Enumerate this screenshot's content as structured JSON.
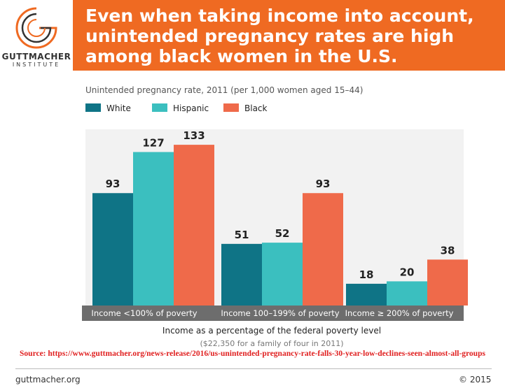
{
  "header": {
    "logo_name": "GUTTMACHER",
    "logo_sub": "INSTITUTE",
    "headline": "Even when taking income into account, unintended pregnancy rates are high among black women in the U.S."
  },
  "colors": {
    "header_bg": "#ef6a22",
    "white": "#0f7486",
    "hispanic": "#3bbfbf",
    "black": "#ef6a4a",
    "category_band": "#6d6d6d",
    "source": "#e02020"
  },
  "chart_data": {
    "type": "bar",
    "title": "Unintended pregnancy rate, 2011 (per 1,000 women aged 15–44)",
    "categories": [
      "Income <100% of poverty",
      "Income 100–199% of poverty",
      "Income ≥ 200% of poverty"
    ],
    "series": [
      {
        "name": "White",
        "values": [
          93,
          51,
          18
        ]
      },
      {
        "name": "Hispanic",
        "values": [
          127,
          52,
          20
        ]
      },
      {
        "name": "Black",
        "values": [
          133,
          93,
          38
        ]
      }
    ],
    "xlabel": "Income as a percentage of the federal poverty level",
    "xlabel_note": "($22,350 for a family of four in 2011)",
    "ylabel": "",
    "ylim": [
      0,
      140
    ],
    "grid": false,
    "legend": "top-left"
  },
  "source": "Source: https://www.guttmacher.org/news-release/2016/us-unintended-pregnancy-rate-falls-30-year-low-declines-seen-almost-all-groups",
  "footer": {
    "site": "guttmacher.org",
    "copyright": "© 2015"
  }
}
